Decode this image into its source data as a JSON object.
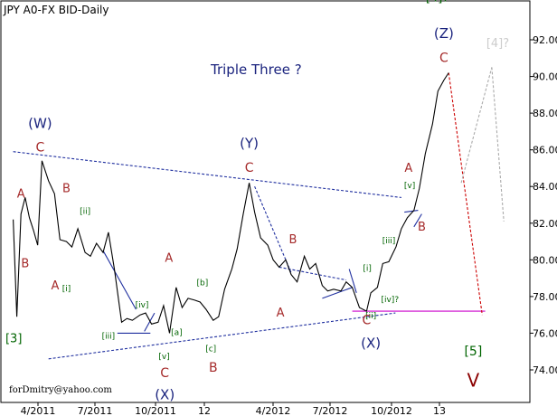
{
  "chart_data": {
    "type": "line",
    "title": "JPY A0-FX BID-Daily",
    "annotation_center": "Triple Three ?",
    "watermark": "forDmitry@yahoo.com",
    "y_ticks": [
      "74.00",
      "76.00",
      "78.00",
      "80.00",
      "82.00",
      "84.00",
      "86.00",
      "88.00",
      "90.00",
      "92.00"
    ],
    "ylim": [
      72.9,
      94.0
    ],
    "x_ticks": [
      "4/2011",
      "7/2011",
      "10/2011",
      "12",
      "4/2012",
      "7/2012",
      "10/2012",
      "13"
    ],
    "x": [
      "2011-02-01",
      "2011-02-07",
      "2011-02-14",
      "2011-02-21",
      "2011-02-28",
      "2011-03-07",
      "2011-03-14",
      "2011-03-21",
      "2011-04-01",
      "2011-04-11",
      "2011-04-20",
      "2011-05-01",
      "2011-05-10",
      "2011-05-20",
      "2011-06-01",
      "2011-06-10",
      "2011-06-20",
      "2011-07-01",
      "2011-07-10",
      "2011-07-20",
      "2011-08-01",
      "2011-08-10",
      "2011-08-19",
      "2011-09-01",
      "2011-09-10",
      "2011-09-20",
      "2011-10-01",
      "2011-10-10",
      "2011-10-20",
      "2011-10-31",
      "2011-11-10",
      "2011-11-20",
      "2011-12-01",
      "2011-12-10",
      "2011-12-20",
      "2012-01-01",
      "2012-01-10",
      "2012-01-20",
      "2012-02-01",
      "2012-02-10",
      "2012-02-20",
      "2012-03-01",
      "2012-03-10",
      "2012-03-20",
      "2012-04-01",
      "2012-04-10",
      "2012-04-20",
      "2012-05-01",
      "2012-05-10",
      "2012-05-20",
      "2012-06-01",
      "2012-06-10",
      "2012-06-20",
      "2012-07-01",
      "2012-07-10",
      "2012-07-20",
      "2012-08-01",
      "2012-08-10",
      "2012-08-20",
      "2012-09-01",
      "2012-09-13",
      "2012-09-20",
      "2012-10-01",
      "2012-10-10",
      "2012-10-20",
      "2012-11-01",
      "2012-11-10",
      "2012-11-20",
      "2012-12-01",
      "2012-12-10",
      "2012-12-20",
      "2013-01-01",
      "2013-01-10",
      "2013-01-20",
      "2013-01-28"
    ],
    "series": [
      {
        "values": [
          82.2,
          76.9,
          82.5,
          83.4,
          82.3,
          81.6,
          80.8,
          85.4,
          84.3,
          83.6,
          81.1,
          81.0,
          80.7,
          81.7,
          80.4,
          80.2,
          80.9,
          80.4,
          81.5,
          79.5,
          76.6,
          76.8,
          76.7,
          77.0,
          77.1,
          76.5,
          76.6,
          77.5,
          76.0,
          78.5,
          77.4,
          77.9,
          77.8,
          77.7,
          77.3,
          76.7,
          76.9,
          78.4,
          79.5,
          80.6,
          82.5,
          84.2,
          82.6,
          81.2,
          80.8,
          80.0,
          79.6,
          80.0,
          79.2,
          78.8,
          80.2,
          79.5,
          79.8,
          78.6,
          78.3,
          78.4,
          78.3,
          78.8,
          78.5,
          77.4,
          77.2,
          78.2,
          78.5,
          79.8,
          79.9,
          80.7,
          81.7,
          82.3,
          82.7,
          83.9,
          85.8,
          87.4,
          89.2,
          89.8,
          90.2
        ]
      }
    ],
    "wave_labels": [
      {
        "text": "(W)",
        "x": "2011-03-18",
        "y": 87.2,
        "color": "#1a237e",
        "size": 15
      },
      {
        "text": "C",
        "x": "2011-03-18",
        "y": 85.9,
        "color": "#a52a2a",
        "size": 14
      },
      {
        "text": "A",
        "x": "2011-02-14",
        "y": 83.4,
        "color": "#a52a2a",
        "size": 13
      },
      {
        "text": "B",
        "x": "2011-02-21",
        "y": 79.6,
        "color": "#a52a2a",
        "size": 13
      },
      {
        "text": "A",
        "x": "2011-04-12",
        "y": 78.4,
        "color": "#a52a2a",
        "size": 13
      },
      {
        "text": "B",
        "x": "2011-05-01",
        "y": 83.7,
        "color": "#a52a2a",
        "size": 13
      },
      {
        "text": "[3]",
        "x": "2011-02-02",
        "y": 75.5,
        "color": "#006400",
        "size": 13
      },
      {
        "text": "[i]",
        "x": "2011-05-01",
        "y": 78.3,
        "color": "#006400",
        "size": 9
      },
      {
        "text": "[ii]",
        "x": "2011-06-01",
        "y": 82.5,
        "color": "#006400",
        "size": 9
      },
      {
        "text": "[iii]",
        "x": "2011-07-10",
        "y": 75.7,
        "color": "#006400",
        "size": 9
      },
      {
        "text": "[iv]",
        "x": "2011-09-04",
        "y": 77.4,
        "color": "#006400",
        "size": 9
      },
      {
        "text": "[v]",
        "x": "2011-10-11",
        "y": 74.6,
        "color": "#006400",
        "size": 9
      },
      {
        "text": "[a]",
        "x": "2011-11-01",
        "y": 75.9,
        "color": "#006400",
        "size": 9
      },
      {
        "text": "[b]",
        "x": "2011-12-14",
        "y": 78.6,
        "color": "#006400",
        "size": 9
      },
      {
        "text": "[c]",
        "x": "2011-12-28",
        "y": 75.0,
        "color": "#006400",
        "size": 9
      },
      {
        "text": "A",
        "x": "2011-10-19",
        "y": 79.9,
        "color": "#a52a2a",
        "size": 13
      },
      {
        "text": "C",
        "x": "2011-10-12",
        "y": 73.6,
        "color": "#a52a2a",
        "size": 14
      },
      {
        "text": "(X)",
        "x": "2011-10-12",
        "y": 72.4,
        "color": "#1a237e",
        "size": 15
      },
      {
        "text": "B",
        "x": "2012-01-01",
        "y": 73.9,
        "color": "#a52a2a",
        "size": 14
      },
      {
        "text": "(Y)",
        "x": "2012-03-01",
        "y": 86.1,
        "color": "#1a237e",
        "size": 15
      },
      {
        "text": "C",
        "x": "2012-03-01",
        "y": 84.8,
        "color": "#a52a2a",
        "size": 14
      },
      {
        "text": "A",
        "x": "2012-04-22",
        "y": 76.9,
        "color": "#a52a2a",
        "size": 13
      },
      {
        "text": "B",
        "x": "2012-05-13",
        "y": 80.9,
        "color": "#a52a2a",
        "size": 13
      },
      {
        "text": "[i]",
        "x": "2012-09-14",
        "y": 79.4,
        "color": "#006400",
        "size": 9
      },
      {
        "text": "[ii]",
        "x": "2012-09-20",
        "y": 76.8,
        "color": "#006400",
        "size": 9
      },
      {
        "text": "C",
        "x": "2012-09-13",
        "y": 76.5,
        "color": "#a52a2a",
        "size": 14
      },
      {
        "text": "(X)",
        "x": "2012-09-20",
        "y": 75.2,
        "color": "#1a237e",
        "size": 15
      },
      {
        "text": "[iii]",
        "x": "2012-10-20",
        "y": 80.9,
        "color": "#006400",
        "size": 9
      },
      {
        "text": "[iv]?",
        "x": "2012-10-22",
        "y": 77.7,
        "color": "#006400",
        "size": 9
      },
      {
        "text": "[v]",
        "x": "2012-11-24",
        "y": 83.9,
        "color": "#006400",
        "size": 9
      },
      {
        "text": "A",
        "x": "2012-11-22",
        "y": 84.8,
        "color": "#a52a2a",
        "size": 13
      },
      {
        "text": "B",
        "x": "2012-12-14",
        "y": 81.6,
        "color": "#a52a2a",
        "size": 13
      },
      {
        "text": "[4]?",
        "x": "2013-01-09",
        "y": 94.1,
        "color": "#006400",
        "size": 13
      },
      {
        "text": "(Z)",
        "x": "2013-01-20",
        "y": 92.1,
        "color": "#1a237e",
        "size": 15
      },
      {
        "text": "C",
        "x": "2013-01-20",
        "y": 90.8,
        "color": "#a52a2a",
        "size": 14
      },
      {
        "text": "[4]?",
        "x": "2013-04-20",
        "y": 91.6,
        "color": "#cccccc",
        "size": 13
      },
      {
        "text": "[5]",
        "x": "2013-03-10",
        "y": 74.8,
        "color": "#006400",
        "size": 14
      },
      {
        "text": "V",
        "x": "2013-03-10",
        "y": 73.1,
        "color": "#8b0000",
        "size": 20
      }
    ],
    "lines": [
      {
        "from": [
          "2011-02-01",
          85.9
        ],
        "to": [
          "2012-11-10",
          83.4
        ],
        "color": "#1f2f9f",
        "dash": "3,2"
      },
      {
        "from": [
          "2011-04-01",
          74.6
        ],
        "to": [
          "2012-10-31",
          77.1
        ],
        "color": "#1f2f9f",
        "dash": "3,2"
      },
      {
        "from": [
          "2012-03-10",
          84.0
        ],
        "to": [
          "2012-05-10",
          79.3
        ],
        "color": "#1f2f9f",
        "dash": "3,2"
      },
      {
        "from": [
          "2012-04-20",
          79.6
        ],
        "to": [
          "2012-08-10",
          78.9
        ],
        "color": "#1f2f9f",
        "dash": "3,2"
      },
      {
        "from": [
          "2012-08-20",
          77.2
        ],
        "to": [
          "2013-03-30",
          77.2
        ],
        "color": "#cc00cc",
        "dash": ""
      },
      {
        "from": [
          "2011-07-01",
          80.5
        ],
        "to": [
          "2011-08-25",
          77.3
        ],
        "color": "#1f2f9f",
        "dash": ""
      },
      {
        "from": [
          "2011-07-25",
          76.0
        ],
        "to": [
          "2011-09-18",
          76.0
        ],
        "color": "#1f2f9f",
        "dash": ""
      },
      {
        "from": [
          "2011-09-08",
          76.1
        ],
        "to": [
          "2011-09-25",
          77.1
        ],
        "color": "#1f2f9f",
        "dash": ""
      },
      {
        "from": [
          "2012-07-01",
          77.9
        ],
        "to": [
          "2012-08-20",
          78.5
        ],
        "color": "#1f2f9f",
        "dash": ""
      },
      {
        "from": [
          "2012-08-15",
          79.5
        ],
        "to": [
          "2012-08-27",
          78.2
        ],
        "color": "#1f2f9f",
        "dash": ""
      },
      {
        "from": [
          "2012-12-01",
          81.8
        ],
        "to": [
          "2012-12-14",
          82.5
        ],
        "color": "#1f2f9f",
        "dash": ""
      },
      {
        "from": [
          "2012-11-15",
          82.6
        ],
        "to": [
          "2012-12-08",
          82.7
        ],
        "color": "#1f2f9f",
        "dash": ""
      },
      {
        "from": [
          "2013-01-28",
          90.2
        ],
        "to": [
          "2013-03-25",
          77.0
        ],
        "color": "#cc0000",
        "dash": "3,2"
      },
      {
        "from": [
          "2013-02-18",
          84.2
        ],
        "to": [
          "2013-04-10",
          90.5
        ],
        "color": "#aaaaaa",
        "dash": "3,2"
      },
      {
        "from": [
          "2013-04-10",
          90.5
        ],
        "to": [
          "2013-04-30",
          82.1
        ],
        "color": "#aaaaaa",
        "dash": "3,2"
      }
    ],
    "grid": false,
    "colors": {
      "price": "#000000",
      "frame": "#000000"
    }
  }
}
